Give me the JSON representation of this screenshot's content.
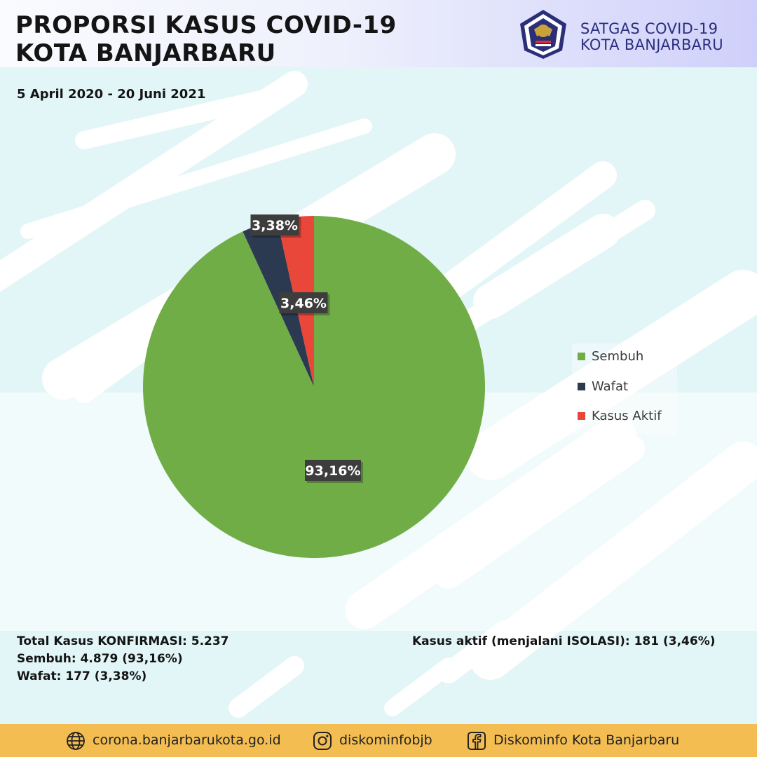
{
  "header": {
    "title_line1": "PROPORSI KASUS COVID-19",
    "title_line2": "KOTA BANJARBARU",
    "date_range": "5 April 2020 - 20 Juni 2021",
    "org_line1": "SATGAS COVID-19",
    "org_line2": "KOTA BANJARBARU",
    "logo_icon": "satgas-covid19-emblem"
  },
  "chart_data": {
    "type": "pie",
    "categories": [
      "Sembuh",
      "Wafat",
      "Kasus Aktif"
    ],
    "values": [
      93.16,
      3.38,
      3.46
    ],
    "data_labels": [
      "93,16%",
      "3,38%",
      "3,46%"
    ],
    "colors": [
      "#70ad47",
      "#2b3a50",
      "#e8473a"
    ],
    "legend_position": "right"
  },
  "stats": {
    "total": "Total Kasus KONFIRMASI: 5.237",
    "sembuh": "Sembuh: 4.879 (93,16%)",
    "wafat": "Wafat: 177 (3,38%)",
    "aktif": "Kasus aktif (menjalani ISOLASI): 181 (3,46%)"
  },
  "footer": {
    "website": "corona.banjarbarukota.go.id",
    "instagram": "diskominfobjb",
    "facebook": "Diskominfo Kota Banjarbaru",
    "icons": [
      "globe-icon",
      "instagram-icon",
      "facebook-icon"
    ]
  },
  "colors": {
    "background": "#e2f5f7",
    "footer": "#f3bd52",
    "org_text": "#2b2f7f"
  }
}
